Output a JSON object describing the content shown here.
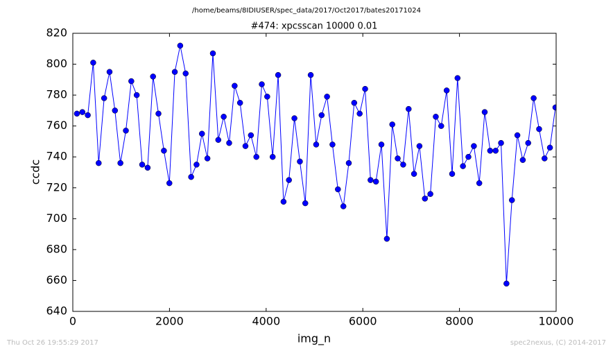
{
  "chart_data": {
    "type": "line",
    "suptitle": "/home/beams/8IDIUSER/spec_data/2017/Oct2017/bates20171024",
    "title": "#474: xpcsscan 10000 0.01",
    "xlabel": "img_n",
    "ylabel": "ccdc",
    "footer_left": "Thu Oct 26 19:55:29 2017",
    "footer_right": "spec2nexus, (C) 2014-2017",
    "xlim": [
      0,
      10000
    ],
    "ylim": [
      640,
      820
    ],
    "xticks": [
      0,
      2000,
      4000,
      6000,
      8000,
      10000
    ],
    "yticks": [
      640,
      660,
      680,
      700,
      720,
      740,
      760,
      780,
      800,
      820
    ],
    "x": [
      85,
      198,
      310,
      422,
      535,
      648,
      760,
      872,
      985,
      1098,
      1210,
      1322,
      1435,
      1548,
      1660,
      1772,
      1885,
      1998,
      2110,
      2222,
      2335,
      2448,
      2560,
      2672,
      2785,
      2898,
      3010,
      3122,
      3235,
      3348,
      3460,
      3572,
      3685,
      3798,
      3910,
      4022,
      4135,
      4248,
      4360,
      4472,
      4585,
      4698,
      4810,
      4922,
      5035,
      5148,
      5260,
      5372,
      5485,
      5598,
      5710,
      5822,
      5935,
      6048,
      6160,
      6272,
      6385,
      6498,
      6610,
      6722,
      6835,
      6948,
      7060,
      7172,
      7285,
      7398,
      7510,
      7622,
      7735,
      7848,
      7960,
      8072,
      8185,
      8298,
      8410,
      8522,
      8635,
      8748,
      8860,
      8972,
      9085,
      9198,
      9310,
      9422,
      9535,
      9648,
      9760,
      9872,
      9985
    ],
    "series": [
      {
        "color": "#0000ff",
        "values": [
          768,
          769,
          767,
          801,
          736,
          778,
          795,
          770,
          736,
          757,
          789,
          780,
          735,
          733,
          792,
          768,
          744,
          723,
          795,
          812,
          794,
          727,
          735,
          755,
          739,
          807,
          751,
          766,
          749,
          786,
          775,
          747,
          754,
          740,
          787,
          779,
          740,
          793,
          711,
          725,
          765,
          737,
          710,
          793,
          748,
          767,
          779,
          748,
          719,
          708,
          736,
          775,
          768,
          784,
          725,
          724,
          748,
          687,
          761,
          739,
          735,
          771,
          729,
          747,
          713,
          716,
          766,
          760,
          783,
          729,
          791,
          734,
          740,
          747,
          723,
          769,
          744,
          744,
          749,
          658,
          712,
          754,
          738,
          749,
          778,
          758,
          739,
          746,
          772
        ]
      }
    ]
  }
}
